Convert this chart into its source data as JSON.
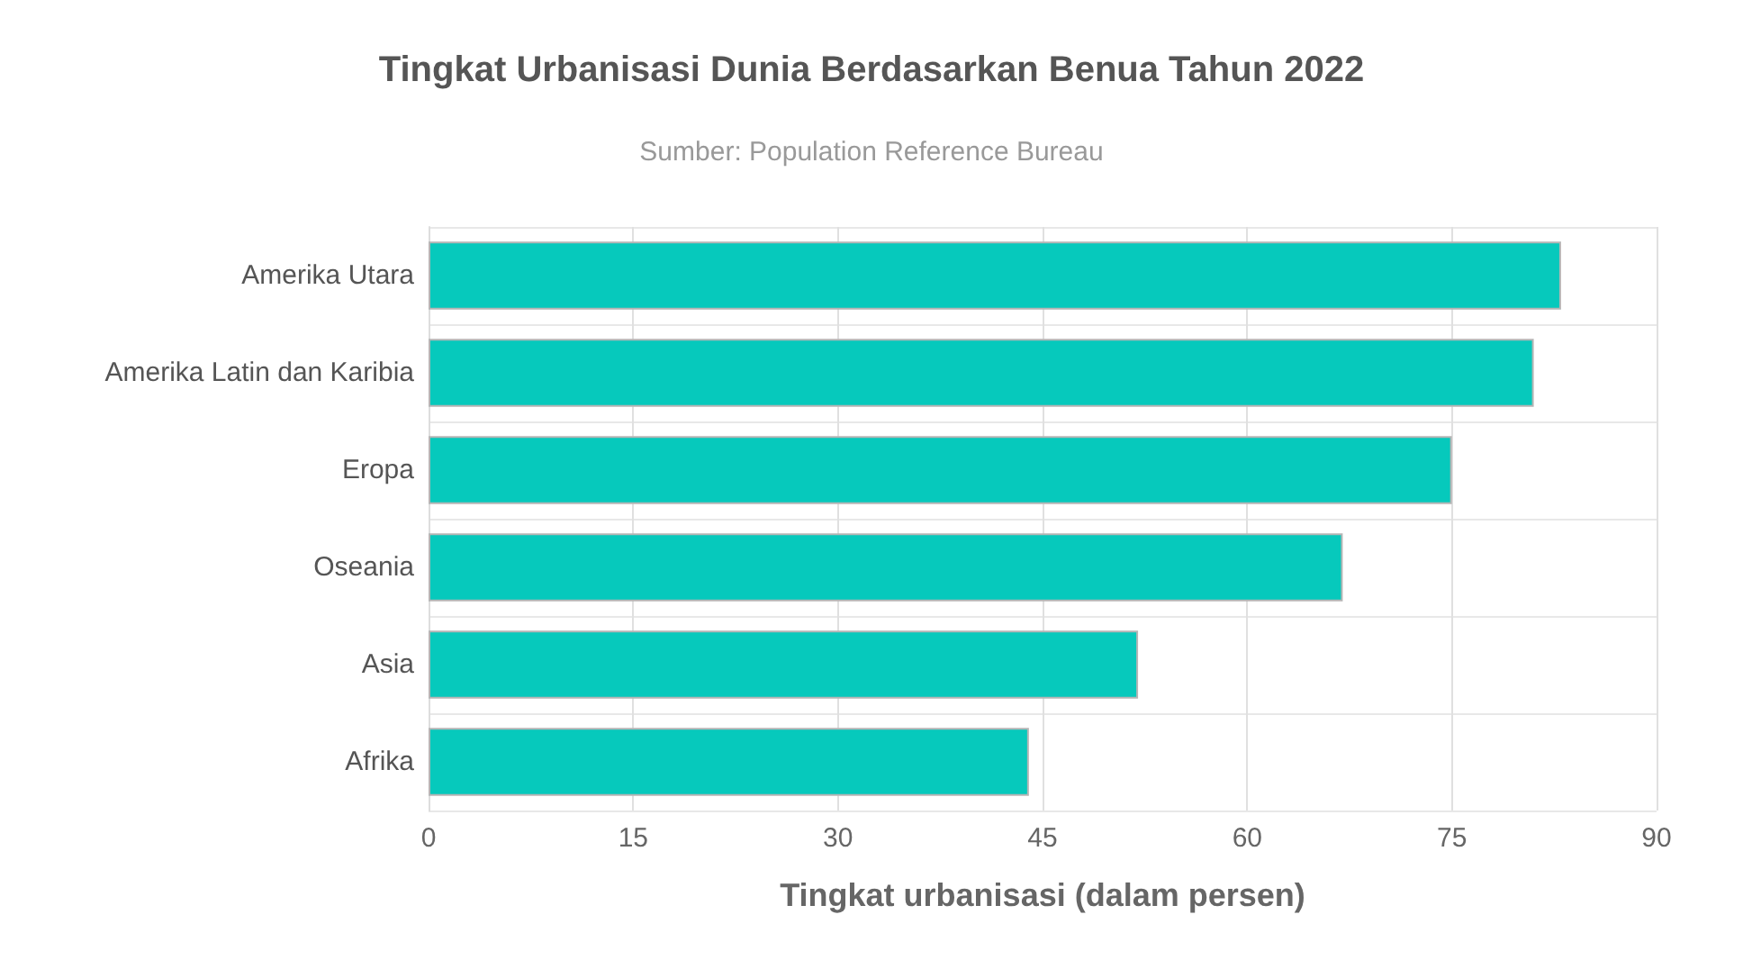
{
  "chart_data": {
    "type": "bar",
    "orientation": "horizontal",
    "title": "Tingkat Urbanisasi Dunia Berdasarkan Benua Tahun 2022",
    "subtitle": "Sumber: Population Reference Bureau",
    "xlabel": "Tingkat urbanisasi (dalam persen)",
    "categories": [
      "Amerika Utara",
      "Amerika Latin dan Karibia",
      "Eropa",
      "Oseania",
      "Asia",
      "Afrika"
    ],
    "values": [
      83,
      81,
      75,
      67,
      52,
      44
    ],
    "color": "#06c9bc",
    "xlim": [
      0,
      90
    ],
    "xticks": [
      0,
      15,
      30,
      45,
      60,
      75,
      90
    ],
    "grid": true
  }
}
